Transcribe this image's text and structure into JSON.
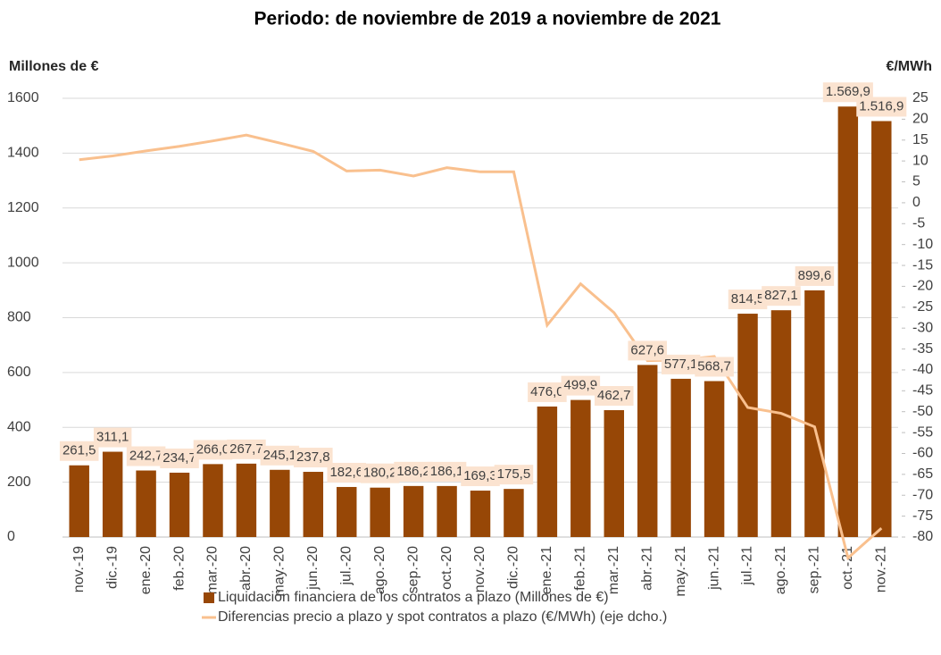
{
  "chart_data": {
    "type": "bar_line",
    "title": "Periodo: de noviembre de 2019 a noviembre de 2021",
    "y_label": "Millones de €",
    "y2_label": "€/MWh",
    "categories": [
      "nov.-19",
      "dic.-19",
      "ene.-20",
      "feb.-20",
      "mar.-20",
      "abr.-20",
      "may.-20",
      "jun.-20",
      "jul.-20",
      "ago.-20",
      "sep.-20",
      "oct.-20",
      "nov.-20",
      "dic.-20",
      "ene.-21",
      "feb.-21",
      "mar.-21",
      "abr.-21",
      "may.-21",
      "jun.-21",
      "jul.-21",
      "ago.-21",
      "sep.-21",
      "oct.-21",
      "nov.-21"
    ],
    "series": [
      {
        "name": "Liquidación financiera de los contratos a plazo (Millones de €)",
        "type": "bar",
        "color": "#974706",
        "values": [
          261.5,
          311.1,
          242.7,
          234.7,
          266.0,
          267.7,
          245.1,
          237.8,
          182.6,
          180.2,
          186.2,
          186.1,
          169.3,
          175.5,
          476.0,
          499.9,
          462.7,
          627.6,
          577.1,
          568.7,
          814.5,
          827.1,
          899.6,
          1569.9,
          1516.9
        ],
        "value_labels": [
          "261,5",
          "311,1",
          "242,7",
          "234,7",
          "266,0",
          "267,7",
          "245,1",
          "237,8",
          "182,6",
          "180,2",
          "186,2",
          "186,1",
          "169,3",
          "175,5",
          "476,0",
          "499,9",
          "462,7",
          "627,6",
          "577,1",
          "568,7",
          "814,5",
          "827,1",
          "899,6",
          "1.569,9",
          "1.516,9"
        ]
      },
      {
        "name": "Diferencias precio a plazo y spot contratos a plazo (€/MWh) (eje dcho.)",
        "type": "line",
        "axis": "y2",
        "color": "#f9c08e",
        "values": [
          10.3,
          11.2,
          12.4,
          13.5,
          14.8,
          16.2,
          14.3,
          12.3,
          7.6,
          7.8,
          6.4,
          8.4,
          7.4,
          7.4,
          -29.3,
          -19.4,
          -26.3,
          -37.8,
          -37.6,
          -36.8,
          -49.0,
          -50.4,
          -53.6,
          -85.0,
          -77.9
        ]
      }
    ],
    "ylim": [
      0,
      1600
    ],
    "yticks": [
      0,
      200,
      400,
      600,
      800,
      1000,
      1200,
      1400,
      1600
    ],
    "y2lim": [
      -80,
      25
    ],
    "y2ticks": [
      25,
      20,
      15,
      10,
      5,
      0,
      -5,
      -10,
      -15,
      -20,
      -25,
      -30,
      -35,
      -40,
      -45,
      -50,
      -55,
      -60,
      -65,
      -70,
      -75,
      -80
    ],
    "grid": true
  }
}
